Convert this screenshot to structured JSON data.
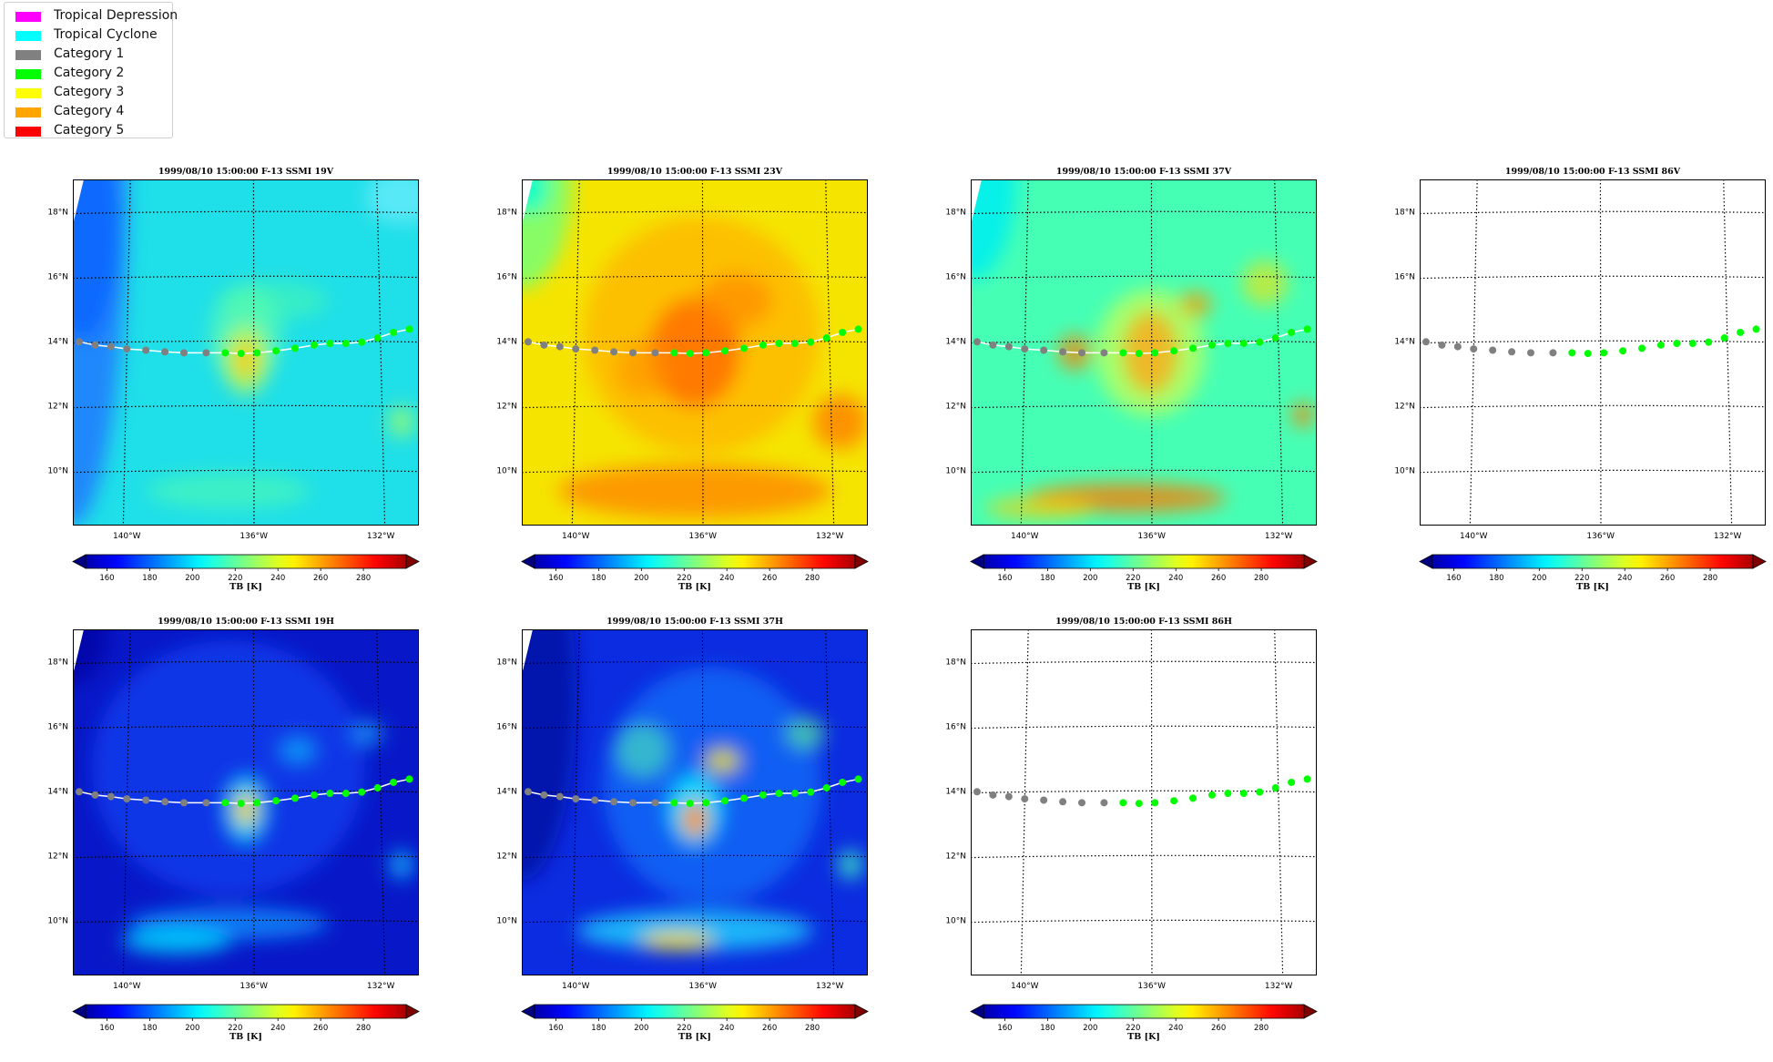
{
  "legend": {
    "items": [
      {
        "label": "Tropical Depression",
        "color": "#ff00ff"
      },
      {
        "label": "Tropical Cyclone",
        "color": "#00ffff"
      },
      {
        "label": "Category 1",
        "color": "#808080"
      },
      {
        "label": "Category 2",
        "color": "#00ff00"
      },
      {
        "label": "Category 3",
        "color": "#ffff00"
      },
      {
        "label": "Category 4",
        "color": "#ffa500"
      },
      {
        "label": "Category 5",
        "color": "#ff0000"
      }
    ]
  },
  "chart_data": [
    {
      "type": "heatmap",
      "title": "1999/08/10 15:00:00  F-13 SSMI 19V",
      "channel": "19V",
      "background": "cyan",
      "has_data": true
    },
    {
      "type": "heatmap",
      "title": "1999/08/10 15:00:00  F-13 SSMI 23V",
      "channel": "23V",
      "background": "yellow",
      "has_data": true
    },
    {
      "type": "heatmap",
      "title": "1999/08/10 15:00:00  F-13 SSMI 37V",
      "channel": "37V",
      "background": "green",
      "has_data": true
    },
    {
      "type": "heatmap",
      "title": "1999/08/10 15:00:00  F-13 SSMI 86V",
      "channel": "86V",
      "background": "none",
      "has_data": false
    },
    {
      "type": "heatmap",
      "title": "1999/08/10 15:00:00  F-13 SSMI 19H",
      "channel": "19H",
      "background": "blue",
      "has_data": true
    },
    {
      "type": "heatmap",
      "title": "1999/08/10 15:00:00  F-13 SSMI 37H",
      "channel": "37H",
      "background": "blue2",
      "has_data": true
    },
    {
      "type": "heatmap",
      "title": "1999/08/10 15:00:00  F-13 SSMI 86H",
      "channel": "86H",
      "background": "none",
      "has_data": false
    }
  ],
  "map_axes": {
    "lat_ticks": [
      "10°N",
      "12°N",
      "14°N",
      "16°N",
      "18°N"
    ],
    "lat_values": [
      10,
      12,
      14,
      16,
      18
    ],
    "lon_ticks": [
      "140°W",
      "136°W",
      "132°W"
    ],
    "lon_values": [
      -140,
      -136,
      -132
    ],
    "lon_range": [
      -141.7,
      -130.8
    ],
    "lat_range": [
      8.3,
      19.0
    ]
  },
  "colorbar": {
    "label": "TB [K]",
    "ticks": [
      "160",
      "180",
      "200",
      "220",
      "240",
      "260",
      "280"
    ],
    "tick_values": [
      160,
      180,
      200,
      220,
      240,
      260,
      280
    ],
    "range": [
      150,
      300
    ],
    "colormap": "jet"
  },
  "track": {
    "lons": [
      -141.5,
      -141.0,
      -140.5,
      -140.0,
      -139.4,
      -138.8,
      -138.2,
      -137.5,
      -136.9,
      -136.4,
      -135.9,
      -135.3,
      -134.7,
      -134.1,
      -133.6,
      -133.1,
      -132.6,
      -132.1,
      -131.6,
      -131.1
    ],
    "lats": [
      13.98,
      13.88,
      13.83,
      13.76,
      13.72,
      13.67,
      13.64,
      13.64,
      13.64,
      13.62,
      13.64,
      13.7,
      13.78,
      13.88,
      13.93,
      13.93,
      13.97,
      14.1,
      14.27,
      14.37
    ],
    "categories": [
      "Category 1",
      "Category 1",
      "Category 1",
      "Category 1",
      "Category 1",
      "Category 1",
      "Category 1",
      "Category 1",
      "Category 2",
      "Category 2",
      "Category 2",
      "Category 2",
      "Category 2",
      "Category 2",
      "Category 2",
      "Category 2",
      "Category 2",
      "Category 2",
      "Category 2",
      "Category 2"
    ]
  }
}
